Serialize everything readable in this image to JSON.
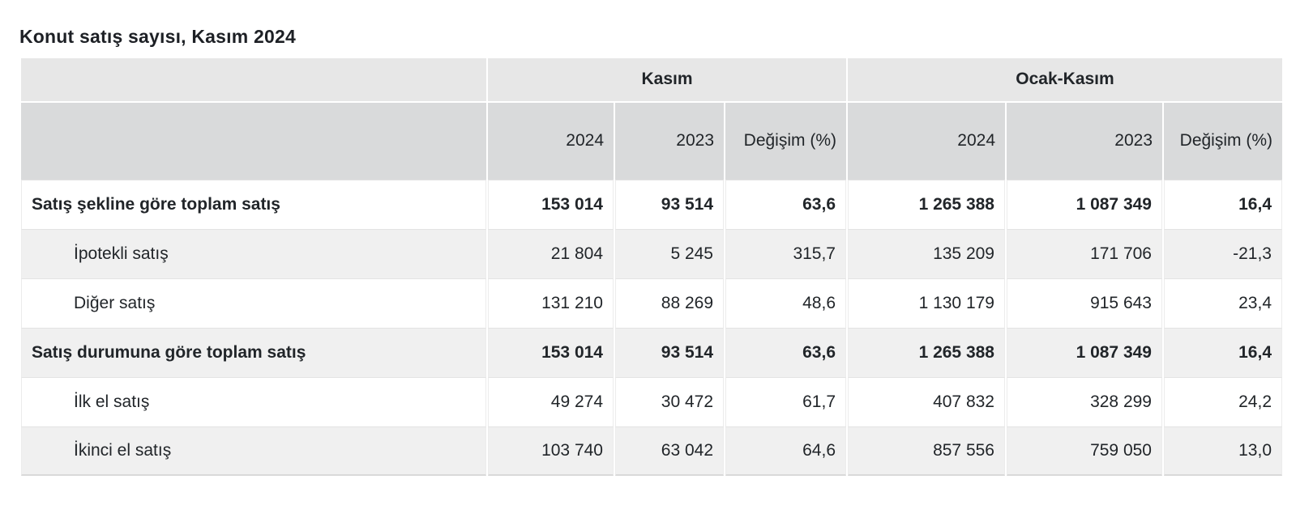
{
  "page": {
    "title": "Konut satış sayısı, Kasım 2024"
  },
  "table": {
    "group_header": {
      "corner": "",
      "groups": [
        {
          "label": "Kasım"
        },
        {
          "label": "Ocak-Kasım"
        }
      ]
    },
    "sub_header": {
      "corner": "",
      "cells": [
        "2024",
        "2023",
        "Değişim (%)",
        "2024",
        "2023",
        "Değişim (%)"
      ]
    },
    "column_keys": [
      "kasim-2024",
      "kasim-2023",
      "kasim-degisim",
      "ocak-kasim-2024",
      "ocak-kasim-2023",
      "ocak-kasim-degisim"
    ],
    "rows": [
      {
        "label": "Satış şekline göre toplam satış",
        "bold": true,
        "indent": false,
        "values": [
          "153 014",
          "93 514",
          "63,6",
          "1 265 388",
          "1 087 349",
          "16,4"
        ]
      },
      {
        "label": "İpotekli satış",
        "bold": false,
        "indent": true,
        "values": [
          "21 804",
          "5 245",
          "315,7",
          "135 209",
          "171 706",
          "-21,3"
        ]
      },
      {
        "label": "Diğer satış",
        "bold": false,
        "indent": true,
        "values": [
          "131 210",
          "88 269",
          "48,6",
          "1 130 179",
          "915 643",
          "23,4"
        ]
      },
      {
        "label": "Satış durumuna göre toplam satış",
        "bold": true,
        "indent": false,
        "values": [
          "153 014",
          "93 514",
          "63,6",
          "1 265 388",
          "1 087 349",
          "16,4"
        ]
      },
      {
        "label": "İlk el satış",
        "bold": false,
        "indent": true,
        "values": [
          "49 274",
          "30 472",
          "61,7",
          "407 832",
          "328 299",
          "24,2"
        ]
      },
      {
        "label": "İkinci el satış",
        "bold": false,
        "indent": true,
        "values": [
          "103 740",
          "63 042",
          "64,6",
          "857 556",
          "759 050",
          "13,0"
        ]
      }
    ],
    "colors": {
      "group_header_bg": "#e7e7e7",
      "sub_header_bg": "#d9dadb",
      "stripe_bg": "#f0f0f0",
      "row_bg": "#ffffff",
      "text": "#212529",
      "row_border": "#e3e3e3",
      "table_bottom_border": "#d9d9d9"
    }
  },
  "chart_data": {
    "type": "table",
    "title": "Konut satış sayısı, Kasım 2024",
    "column_groups": [
      "Kasım",
      "Ocak-Kasım"
    ],
    "columns": [
      "Kasım 2024",
      "Kasım 2023",
      "Kasım Değişim (%)",
      "Ocak-Kasım 2024",
      "Ocak-Kasım 2023",
      "Ocak-Kasım Değişim (%)"
    ],
    "rows": [
      {
        "label": "Satış şekline göre toplam satış",
        "kasim_2024": 153014,
        "kasim_2023": 93514,
        "kasim_degisim_pct": 63.6,
        "ocak_kasim_2024": 1265388,
        "ocak_kasim_2023": 1087349,
        "ocak_kasim_degisim_pct": 16.4
      },
      {
        "label": "İpotekli satış",
        "kasim_2024": 21804,
        "kasim_2023": 5245,
        "kasim_degisim_pct": 315.7,
        "ocak_kasim_2024": 135209,
        "ocak_kasim_2023": 171706,
        "ocak_kasim_degisim_pct": -21.3
      },
      {
        "label": "Diğer satış",
        "kasim_2024": 131210,
        "kasim_2023": 88269,
        "kasim_degisim_pct": 48.6,
        "ocak_kasim_2024": 1130179,
        "ocak_kasim_2023": 915643,
        "ocak_kasim_degisim_pct": 23.4
      },
      {
        "label": "Satış durumuna göre toplam satış",
        "kasim_2024": 153014,
        "kasim_2023": 93514,
        "kasim_degisim_pct": 63.6,
        "ocak_kasim_2024": 1265388,
        "ocak_kasim_2023": 1087349,
        "ocak_kasim_degisim_pct": 16.4
      },
      {
        "label": "İlk el satış",
        "kasim_2024": 49274,
        "kasim_2023": 30472,
        "kasim_degisim_pct": 61.7,
        "ocak_kasim_2024": 407832,
        "ocak_kasim_2023": 328299,
        "ocak_kasim_degisim_pct": 24.2
      },
      {
        "label": "İkinci el satış",
        "kasim_2024": 103740,
        "kasim_2023": 63042,
        "kasim_degisim_pct": 64.6,
        "ocak_kasim_2024": 857556,
        "ocak_kasim_2023": 759050,
        "ocak_kasim_degisim_pct": 13.0
      }
    ],
    "number_format": {
      "thousands_separator": " ",
      "decimal_separator": ","
    },
    "layout": {
      "bold_rows": [
        0,
        3
      ],
      "indented_rows": [
        1,
        2,
        4,
        5
      ],
      "zebra_striping": true
    }
  }
}
